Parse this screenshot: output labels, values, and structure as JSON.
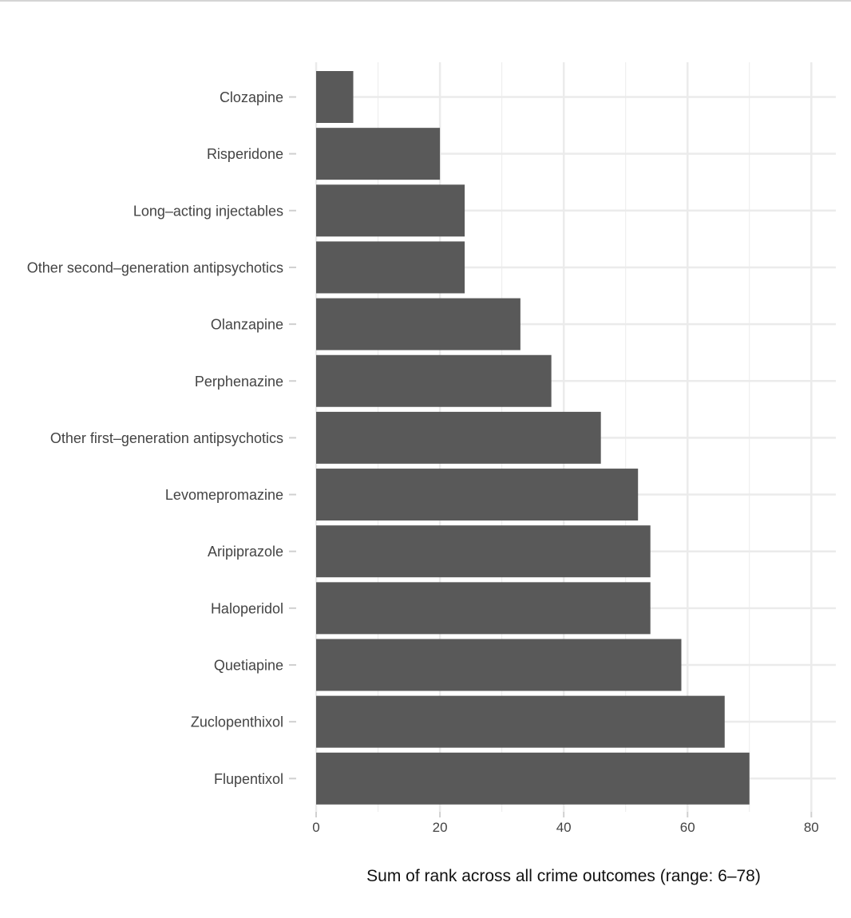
{
  "chart_data": {
    "type": "bar",
    "orientation": "horizontal",
    "categories": [
      "Clozapine",
      "Risperidone",
      "Long–acting injectables",
      "Other second–generation antipsychotics",
      "Olanzapine",
      "Perphenazine",
      "Other first–generation antipsychotics",
      "Levomepromazine",
      "Aripiprazole",
      "Haloperidol",
      "Quetiapine",
      "Zuclopenthixol",
      "Flupentixol"
    ],
    "values": [
      6,
      20,
      24,
      24,
      33,
      38,
      46,
      52,
      54,
      54,
      59,
      66,
      70
    ],
    "title": "",
    "xlabel": "Sum of rank across all crime outcomes (range: 6–78)",
    "ylabel": "",
    "xlim": [
      0,
      84.2
    ],
    "xticks": [
      0,
      20,
      40,
      60,
      80
    ],
    "xtick_labels": [
      "0",
      "20",
      "40",
      "60",
      "80"
    ],
    "grid": true,
    "bar_color": "#595959",
    "grid_color": "#ebebeb"
  }
}
